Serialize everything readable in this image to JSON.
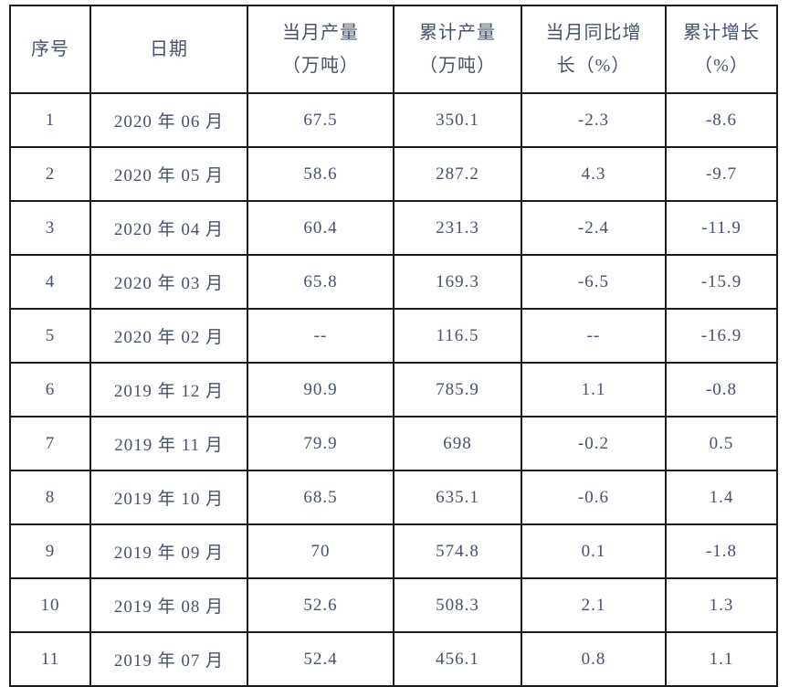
{
  "table": {
    "columns": [
      {
        "id": "index",
        "label_lines": [
          "序号"
        ]
      },
      {
        "id": "date",
        "label_lines": [
          "日期"
        ]
      },
      {
        "id": "monthly-output",
        "label_lines": [
          "当月产量",
          "（万吨）"
        ]
      },
      {
        "id": "cumulative-output",
        "label_lines": [
          "累计产量",
          "（万吨）"
        ]
      },
      {
        "id": "monthly-yoy-growth",
        "label_lines": [
          "当月同比增",
          "长（%）"
        ]
      },
      {
        "id": "cumulative-growth",
        "label_lines": [
          "累计增长",
          "（%）"
        ]
      }
    ],
    "rows": [
      [
        "1",
        "2020 年 06 月",
        "67.5",
        "350.1",
        "-2.3",
        "-8.6"
      ],
      [
        "2",
        "2020 年 05 月",
        "58.6",
        "287.2",
        "4.3",
        "-9.7"
      ],
      [
        "3",
        "2020 年 04 月",
        "60.4",
        "231.3",
        "-2.4",
        "-11.9"
      ],
      [
        "4",
        "2020 年 03 月",
        "65.8",
        "169.3",
        "-6.5",
        "-15.9"
      ],
      [
        "5",
        "2020 年 02 月",
        "--",
        "116.5",
        "--",
        "-16.9"
      ],
      [
        "6",
        "2019 年 12 月",
        "90.9",
        "785.9",
        "1.1",
        "-0.8"
      ],
      [
        "7",
        "2019 年 11 月",
        "79.9",
        "698",
        "-0.2",
        "0.5"
      ],
      [
        "8",
        "2019 年 10 月",
        "68.5",
        "635.1",
        "-0.6",
        "1.4"
      ],
      [
        "9",
        "2019 年 09 月",
        "70",
        "574.8",
        "0.1",
        "-1.8"
      ],
      [
        "10",
        "2019 年 08 月",
        "52.6",
        "508.3",
        "2.1",
        "1.3"
      ],
      [
        "11",
        "2019 年 07 月",
        "52.4",
        "456.1",
        "0.8",
        "1.1"
      ]
    ]
  },
  "colors": {
    "text": "#47526b",
    "border": "#1c1c1c",
    "background": "#ffffff"
  }
}
